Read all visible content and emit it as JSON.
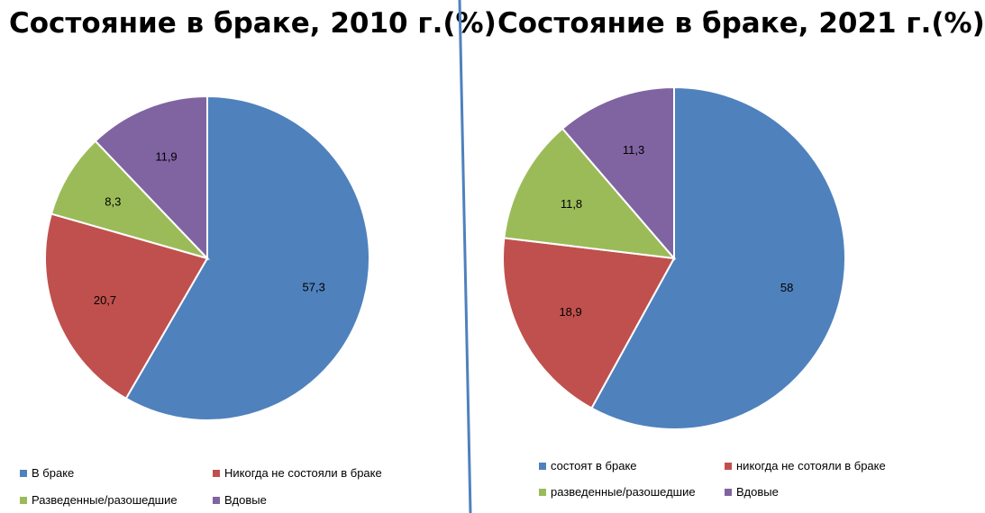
{
  "charts": [
    {
      "title": "Состояние в браке, 2010 г.(%)",
      "legend": [
        {
          "label": "В браке",
          "color": "#4F81BD"
        },
        {
          "label": "Никогда не состояли в браке",
          "color": "#C0504D"
        },
        {
          "label": "Разведенные/разошедшие",
          "color": "#9BBB59"
        },
        {
          "label": "Вдовые",
          "color": "#8064A2"
        }
      ]
    },
    {
      "title": "Состояние в браке, 2021 г.(%)",
      "legend": [
        {
          "label": "состоят в браке",
          "color": "#4F81BD"
        },
        {
          "label": "никогда не сотояли в браке",
          "color": "#C0504D"
        },
        {
          "label": "разведенные/разошедшие",
          "color": "#9BBB59"
        },
        {
          "label": "Вдовые",
          "color": "#8064A2"
        }
      ]
    }
  ],
  "divider_color": "#4F81BD",
  "chart_data": [
    {
      "type": "pie",
      "title": "Состояние в браке, 2010 г.(%)",
      "categories": [
        "В браке",
        "Никогда не состояли в браке",
        "Разведенные/разошедшие",
        "Вдовые"
      ],
      "values": [
        57.3,
        20.7,
        8.3,
        11.9
      ],
      "value_labels": [
        "57,3",
        "20,7",
        "8,3",
        "11,9"
      ],
      "colors": [
        "#4F81BD",
        "#C0504D",
        "#9BBB59",
        "#8064A2"
      ],
      "legend_position": "bottom"
    },
    {
      "type": "pie",
      "title": "Состояние в браке, 2021 г.(%)",
      "categories": [
        "состоят в браке",
        "никогда не сотояли в браке",
        "разведенные/разошедшие",
        "Вдовые"
      ],
      "values": [
        58,
        18.9,
        11.8,
        11.3
      ],
      "value_labels": [
        "58",
        "18,9",
        "11,8",
        "11,3"
      ],
      "colors": [
        "#4F81BD",
        "#C0504D",
        "#9BBB59",
        "#8064A2"
      ],
      "legend_position": "bottom"
    }
  ]
}
